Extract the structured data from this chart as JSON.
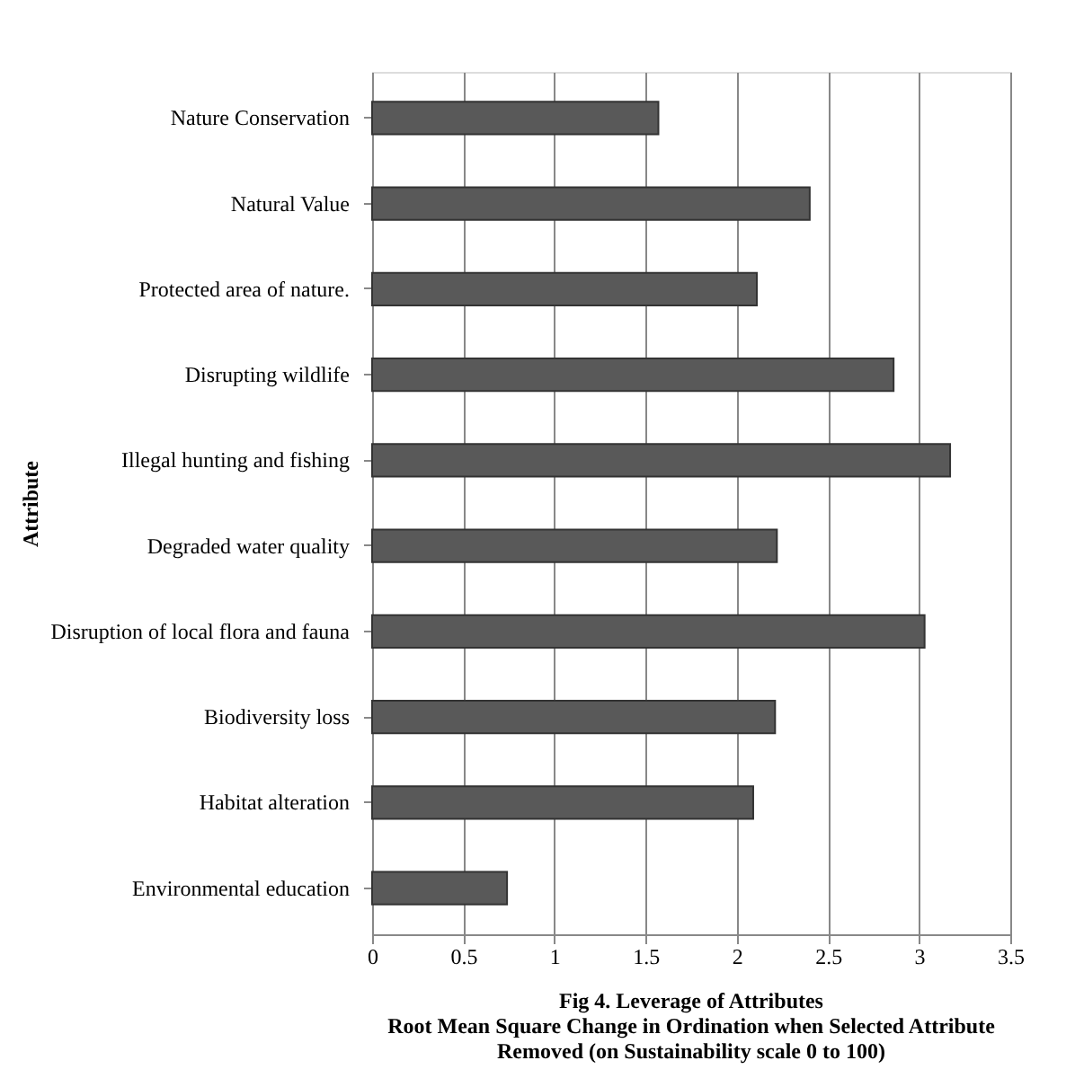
{
  "chart_data": {
    "type": "bar",
    "orientation": "horizontal",
    "ylabel": "Attribute",
    "xlabel": "Fig 4. Leverage of Attributes\nRoot Mean Square Change in Ordination when Selected Attribute\nRemoved  (on Sustainability scale 0 to 100)",
    "categories": [
      "Nature Conservation",
      "Natural Value",
      "Protected area of nature.",
      "Disrupting wildlife",
      "Illegal hunting and fishing",
      "Degraded water quality",
      "Disruption of local flora and fauna",
      "Biodiversity loss",
      "Habitat alteration",
      "Environmental education"
    ],
    "values": [
      1.57,
      2.4,
      2.11,
      2.86,
      3.17,
      2.22,
      3.03,
      2.21,
      2.09,
      0.74
    ],
    "color": "#595959",
    "xlim": [
      0,
      3.5
    ],
    "xticks": [
      0,
      0.5,
      1,
      1.5,
      2,
      2.5,
      3,
      3.5
    ],
    "grid": "x"
  }
}
